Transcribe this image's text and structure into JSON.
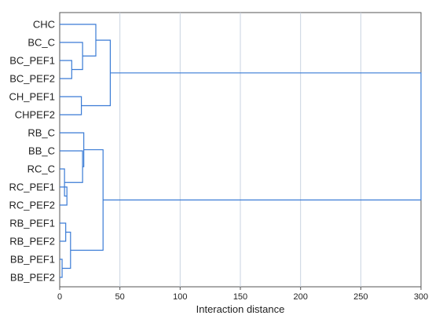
{
  "chart_data": {
    "type": "dendrogram",
    "xlabel": "Interaction distance",
    "xlim": [
      0,
      300
    ],
    "xticks": [
      0,
      50,
      100,
      150,
      200,
      250,
      300
    ],
    "grid": true,
    "orientation": "horizontal",
    "leaves": [
      "CHC",
      "BC_C",
      "BC_PEF1",
      "BC_PEF2",
      "CH_PEF1",
      "CHPEF2",
      "RB_C",
      "BB_C",
      "RC_C",
      "RC_PEF1",
      "RC_PEF2",
      "RB_PEF1",
      "RB_PEF2",
      "BB_PEF1",
      "BB_PEF2"
    ],
    "merges": [
      {
        "a": "BB_PEF1",
        "b": "BB_PEF2",
        "height": 2
      },
      {
        "a": "RC_PEF1",
        "b": "RC_PEF2",
        "height": 6
      },
      {
        "a": "RC_C",
        "b": "m1",
        "height": 4
      },
      {
        "a": "RB_PEF1",
        "b": "RB_PEF2",
        "height": 5
      },
      {
        "a": "m3",
        "b": "m0",
        "height": 9
      },
      {
        "a": "BC_PEF1",
        "b": "BC_PEF2",
        "height": 10
      },
      {
        "a": "CH_PEF1",
        "b": "CHPEF2",
        "height": 18
      },
      {
        "a": "BC_C",
        "b": "m5",
        "height": 19
      },
      {
        "a": "BB_C",
        "b": "m2",
        "height": 19
      },
      {
        "a": "RB_C",
        "b": "m8",
        "height": 20
      },
      {
        "a": "CHC",
        "b": "m7",
        "height": 30
      },
      {
        "a": "m10",
        "b": "m6",
        "height": 42
      },
      {
        "a": "m9",
        "b": "m4",
        "height": 36
      },
      {
        "a": "m11",
        "b": "m12",
        "height": 300
      }
    ],
    "color": "#3a7bd5",
    "grid_color": "#c9d3e0"
  }
}
